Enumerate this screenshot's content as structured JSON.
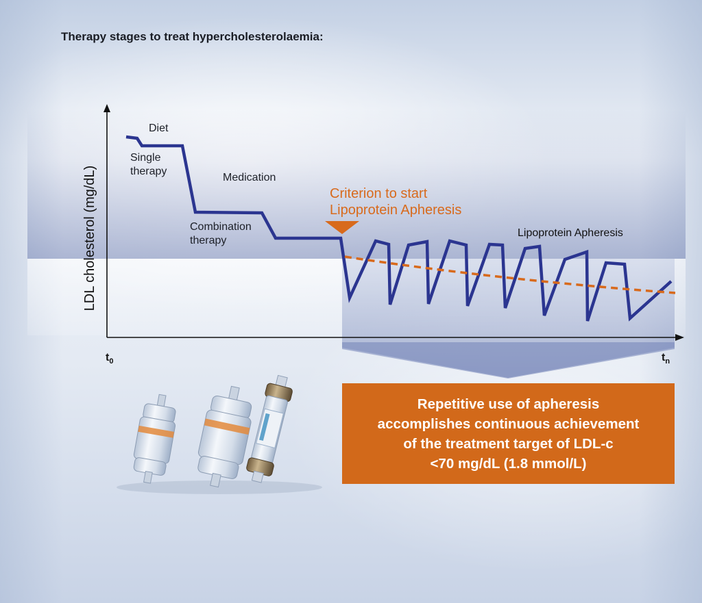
{
  "title": "Therapy stages to treat hypercholesterolaemia:",
  "axes": {
    "ylabel": "LDL cholesterol (mg/dL)",
    "x_start": "t",
    "x_start_sub": "0",
    "x_end": "t",
    "x_end_sub": "n"
  },
  "stages": {
    "diet": "Diet",
    "single_1": "Single",
    "single_2": "therapy",
    "medication": "Medication",
    "combination_1": "Combination",
    "combination_2": "therapy",
    "apheresis": "Lipoprotein Apheresis"
  },
  "criterion": {
    "line1": "Criterion to start",
    "line2": "Lipoprotein Apheresis"
  },
  "callout": {
    "text": "Repetitive use of apheresis\naccomplishes continuous achievement\nof the treatment target of LDL-c\n<70 mg/dL (1.8 mmol/L)"
  },
  "colors": {
    "curve": "#2b3590",
    "trend": "#d86a1c",
    "callout_bg": "#d2691a",
    "target_zone": "#5e6fa8"
  },
  "devices": [
    "apheresis-column-1",
    "apheresis-column-2",
    "apheresis-column-3"
  ]
}
